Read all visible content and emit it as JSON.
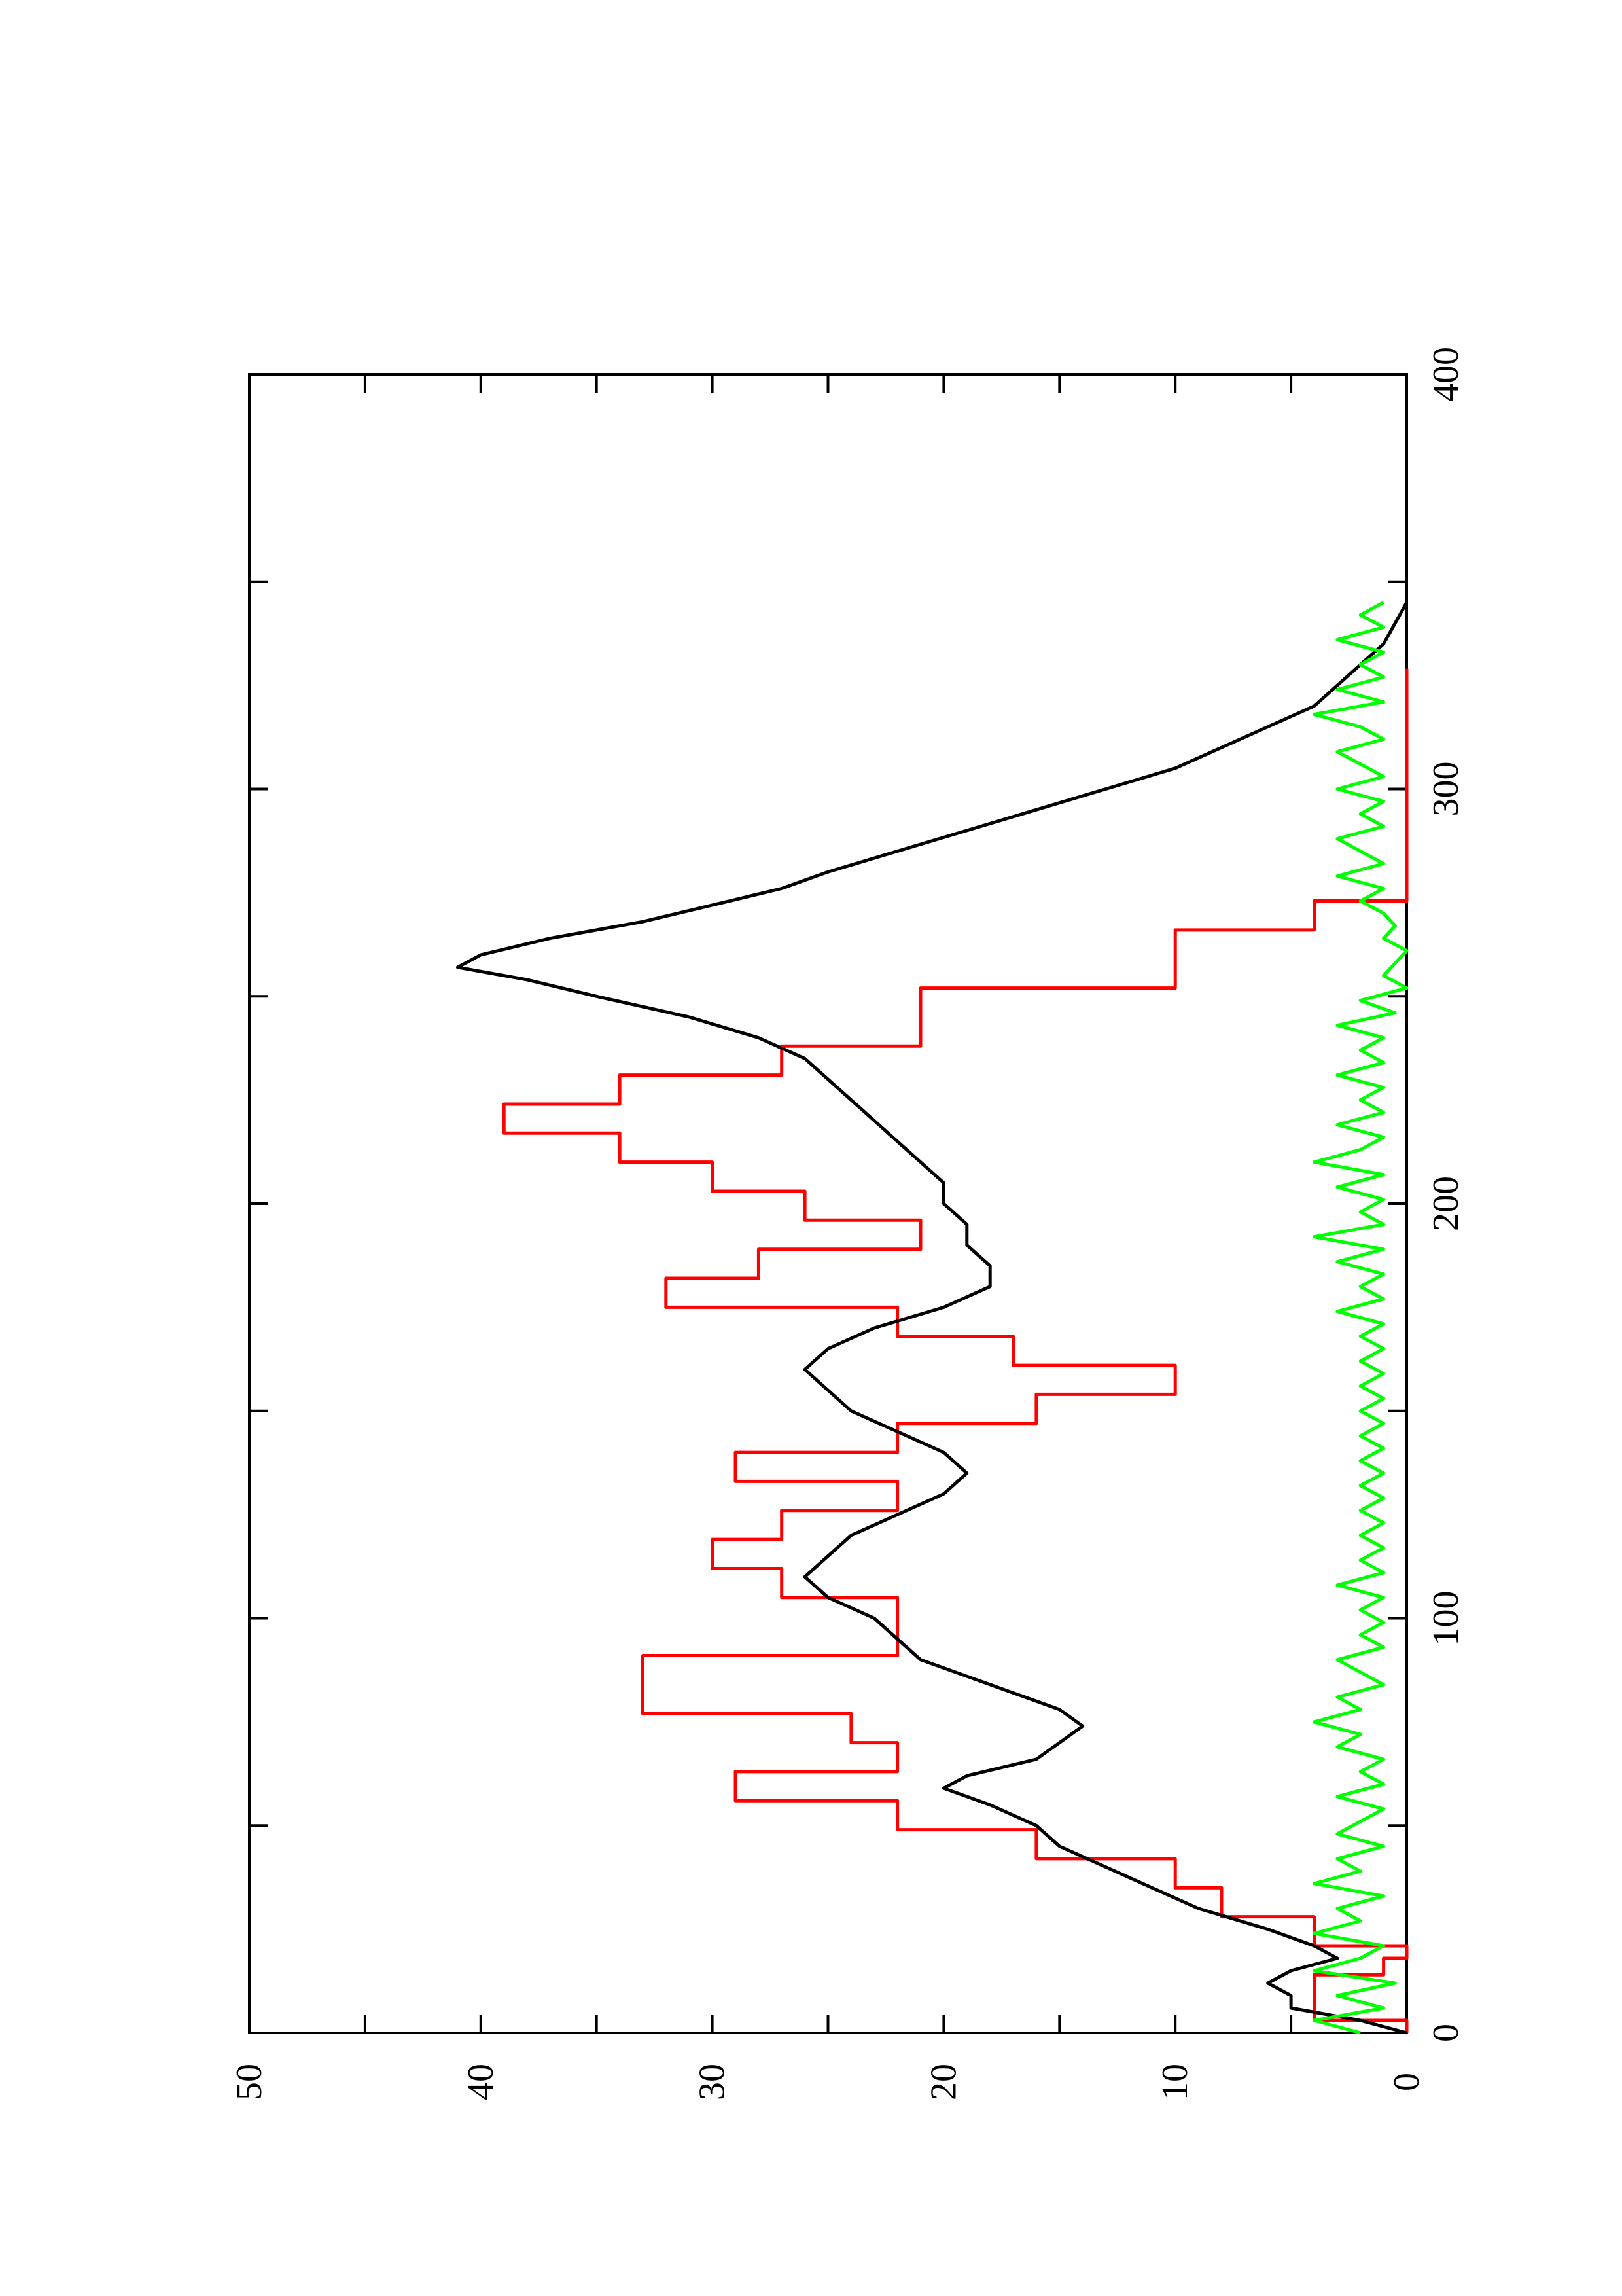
{
  "chart_data": {
    "type": "line",
    "orientation": "rotated-90-ccw",
    "title": "",
    "xlabel": "",
    "ylabel": "",
    "xlim": [
      0,
      400
    ],
    "ylim": [
      0,
      50
    ],
    "grid": false,
    "x_ticks": [
      "0",
      "100",
      "200",
      "300",
      "400"
    ],
    "y_ticks": [
      "0",
      "10",
      "20",
      "30",
      "40",
      "50"
    ],
    "series": [
      {
        "color": "#ff0000",
        "style": "step",
        "x": [
          0,
          3,
          7,
          14,
          18,
          21,
          28,
          35,
          42,
          49,
          56,
          63,
          70,
          77,
          84,
          91,
          98,
          105,
          112,
          119,
          126,
          133,
          140,
          147,
          154,
          161,
          168,
          175,
          182,
          189,
          196,
          203,
          210,
          217,
          224,
          231,
          238,
          245,
          252,
          259,
          266,
          273,
          280,
          287,
          294,
          301,
          308,
          315,
          322,
          329
        ],
        "y": [
          0,
          4,
          4,
          1,
          0,
          4,
          8,
          10,
          16,
          22,
          29,
          22,
          24,
          33,
          33,
          22,
          22,
          27,
          30,
          27,
          22,
          29,
          22,
          16,
          10,
          17,
          22,
          32,
          28,
          21,
          26,
          30,
          34,
          39,
          34,
          27,
          21,
          21,
          10,
          10,
          4,
          0,
          0,
          0,
          0,
          0,
          0,
          0,
          0,
          0
        ]
      },
      {
        "color": "#000000",
        "style": "line",
        "x": [
          0,
          3,
          6,
          9,
          12,
          15,
          18,
          21,
          25,
          30,
          35,
          40,
          45,
          50,
          55,
          59,
          62,
          66,
          70,
          74,
          78,
          82,
          86,
          90,
          95,
          100,
          105,
          110,
          115,
          120,
          125,
          130,
          135,
          140,
          145,
          150,
          155,
          160,
          165,
          170,
          175,
          180,
          185,
          190,
          195,
          200,
          205,
          210,
          215,
          220,
          225,
          230,
          235,
          240,
          245,
          250,
          254,
          257,
          260,
          264,
          268,
          272,
          276,
          280,
          285,
          290,
          295,
          300,
          305,
          310,
          315,
          320,
          325,
          330,
          335,
          340,
          345
        ],
        "y": [
          0,
          2,
          5,
          5,
          6,
          5,
          3,
          4,
          6,
          9,
          11,
          13,
          15,
          16,
          18,
          20,
          19,
          16,
          15,
          14,
          15,
          17,
          19,
          21,
          22,
          23,
          25,
          26,
          25,
          24,
          22,
          20,
          19,
          20,
          22,
          24,
          25,
          26,
          25,
          23,
          20,
          18,
          18,
          19,
          19,
          20,
          20,
          21,
          22,
          23,
          24,
          25,
          26,
          28,
          31,
          35,
          38,
          41,
          40,
          37,
          33,
          30,
          27,
          25,
          22,
          19,
          16,
          13,
          10,
          8,
          6,
          4,
          3,
          2,
          1,
          0.5,
          0
        ]
      },
      {
        "color": "#00ff00",
        "style": "line",
        "x": [
          0,
          3,
          6,
          9,
          12,
          15,
          18,
          21,
          24,
          27,
          30,
          33,
          36,
          39,
          42,
          45,
          48,
          51,
          54,
          57,
          60,
          63,
          66,
          69,
          72,
          75,
          78,
          81,
          84,
          87,
          90,
          93,
          96,
          99,
          102,
          105,
          108,
          111,
          114,
          117,
          120,
          123,
          126,
          129,
          132,
          135,
          138,
          141,
          144,
          147,
          150,
          153,
          156,
          159,
          162,
          165,
          168,
          171,
          174,
          177,
          180,
          183,
          186,
          189,
          192,
          195,
          198,
          201,
          204,
          207,
          210,
          213,
          216,
          219,
          222,
          225,
          228,
          231,
          234,
          237,
          240,
          243,
          246,
          249,
          252,
          255,
          258,
          261,
          264,
          267,
          270,
          273,
          276,
          279,
          282,
          285,
          288,
          291,
          294,
          297,
          300,
          303,
          306,
          309,
          312,
          315,
          318,
          321,
          324,
          327,
          330,
          333,
          336,
          339,
          342,
          345
        ],
        "y": [
          2,
          4,
          1,
          3,
          0.5,
          4,
          2,
          1,
          4,
          2,
          3,
          1,
          4,
          2,
          3,
          1,
          3,
          2,
          1,
          3,
          1,
          2,
          1,
          3,
          2,
          4,
          2,
          3,
          1,
          2,
          3,
          1,
          2,
          1,
          2,
          1,
          3,
          1,
          2,
          1,
          2,
          1,
          2,
          1,
          2,
          1,
          2,
          1,
          2,
          1,
          2,
          1,
          2,
          1,
          2,
          1,
          2,
          1,
          3,
          1,
          2,
          1,
          3,
          1,
          4,
          1,
          2,
          1,
          3,
          1,
          4,
          2,
          1,
          3,
          1,
          2,
          1,
          3,
          1,
          2,
          1,
          3,
          0.5,
          2,
          0,
          1,
          0.5,
          0,
          1,
          0.5,
          1,
          2,
          1,
          3,
          1,
          2,
          3,
          1,
          2,
          1,
          3,
          1,
          2,
          3,
          1,
          2,
          4,
          1,
          3,
          1,
          2,
          1,
          3,
          1,
          2,
          1
        ]
      }
    ]
  }
}
